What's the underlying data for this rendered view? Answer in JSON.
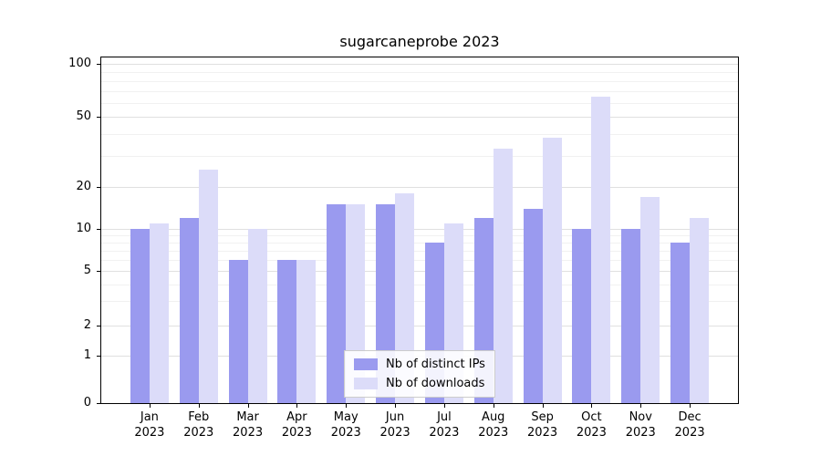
{
  "chart_data": {
    "type": "bar",
    "title": "sugarcaneprobe 2023",
    "categories": [
      "Jan 2023",
      "Feb 2023",
      "Mar 2023",
      "Apr 2023",
      "May 2023",
      "Jun 2023",
      "Jul 2023",
      "Aug 2023",
      "Sep 2023",
      "Oct 2023",
      "Nov 2023",
      "Dec 2023"
    ],
    "series": [
      {
        "name": "Nb of distinct IPs",
        "color": "#9a9aef",
        "values": [
          10,
          12,
          6,
          6,
          15,
          15,
          8,
          12,
          14,
          10,
          10,
          8
        ]
      },
      {
        "name": "Nb of downloads",
        "color": "#dcdcf9",
        "values": [
          11,
          25,
          10,
          6,
          15,
          18,
          11,
          33,
          38,
          65,
          17,
          12
        ]
      }
    ],
    "xlabel": "",
    "ylabel": "",
    "yscale": "symlog",
    "yticks": [
      0,
      1,
      2,
      5,
      10,
      20,
      50,
      100
    ],
    "minor_yticks": [
      3,
      4,
      6,
      7,
      8,
      9,
      30,
      40,
      60,
      70,
      80,
      90
    ],
    "ylim": [
      0,
      110
    ],
    "grid": true,
    "legend_position": "lower center"
  },
  "colors": {
    "axis": "#000000",
    "grid_major": "#e0e0e0",
    "grid_minor": "#f1f1f1",
    "background": "#ffffff"
  }
}
